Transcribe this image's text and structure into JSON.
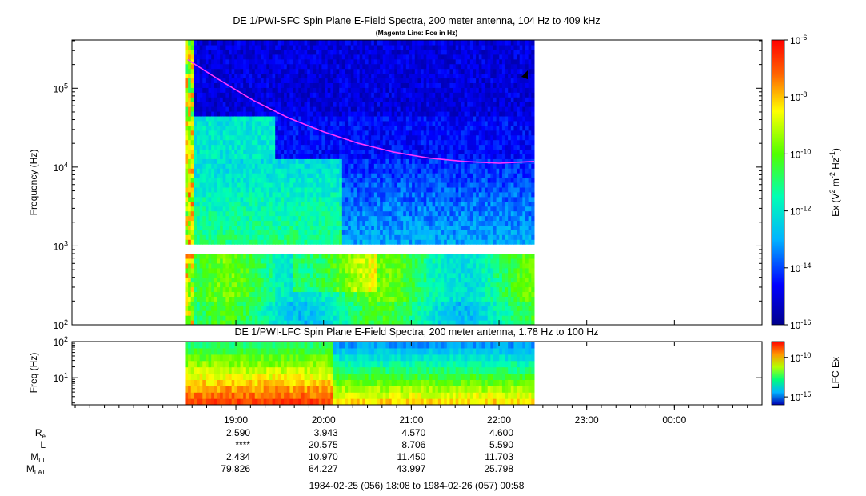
{
  "chart_data": [
    {
      "type": "heatmap",
      "title": "DE 1/PWI-SFC  Spin Plane E-Field Spectra, 200 meter antenna, 104 Hz to 409 kHz",
      "subtitle": "(Magenta Line: Fce in Hz)",
      "ylabel": "Frequency (Hz)",
      "y_scale": "log",
      "ylim": [
        100,
        409000
      ],
      "y_ticks": [
        {
          "v": 100,
          "b": "10",
          "e": "2"
        },
        {
          "v": 1000,
          "b": "10",
          "e": "3"
        },
        {
          "v": 10000,
          "b": "10",
          "e": "4"
        },
        {
          "v": 100000,
          "b": "10",
          "e": "5"
        }
      ],
      "data_extent_hours": [
        18.42,
        22.4
      ],
      "data_gap_hz": [
        900,
        1050
      ],
      "colorbar": {
        "label_parts": [
          "Ex (V",
          "2",
          " m",
          "-2",
          " Hz",
          "-1",
          ")"
        ],
        "scale": "log",
        "range": [
          1e-16,
          1e-06
        ],
        "ticks": [
          {
            "v": -16,
            "b": "10",
            "e": "-16"
          },
          {
            "v": -14,
            "b": "10",
            "e": "-14"
          },
          {
            "v": -12,
            "b": "10",
            "e": "-12"
          },
          {
            "v": -10,
            "b": "10",
            "e": "-10"
          },
          {
            "v": -8,
            "b": "10",
            "e": "-8"
          },
          {
            "v": -6,
            "b": "10",
            "e": "-6"
          }
        ]
      },
      "fce_line": {
        "color": "#ff33ff",
        "t_hours": [
          18.45,
          18.8,
          19.2,
          19.6,
          20.0,
          20.4,
          20.8,
          21.2,
          21.6,
          22.0,
          22.4
        ],
        "freq_hz": [
          230000,
          130000,
          70000,
          42000,
          28000,
          20000,
          15500,
          13000,
          11800,
          11200,
          11800
        ]
      }
    },
    {
      "type": "heatmap",
      "title": "DE 1/PWI-LFC  Spin Plane E-Field Spectra, 200 meter antenna, 1.78 Hz to 100 Hz",
      "ylabel": "Freq (Hz)",
      "y_scale": "log",
      "ylim": [
        1.78,
        100
      ],
      "y_ticks": [
        {
          "v": 10,
          "b": "10",
          "e": "1"
        },
        {
          "v": 100,
          "b": "10",
          "e": "2"
        }
      ],
      "data_extent_hours": [
        18.42,
        22.4
      ],
      "colorbar": {
        "label": "LFC Ex",
        "scale": "log",
        "range": [
          1e-16,
          1e-08
        ],
        "ticks": [
          {
            "v": -15,
            "b": "10",
            "e": "-15"
          },
          {
            "v": -10,
            "b": "10",
            "e": "-10"
          }
        ]
      }
    }
  ],
  "x_axis": {
    "xlim_hours": [
      17.13,
      25.0
    ],
    "major_ticks": [
      {
        "h": 19,
        "label": "19:00"
      },
      {
        "h": 20,
        "label": "20:00"
      },
      {
        "h": 21,
        "label": "21:00"
      },
      {
        "h": 22,
        "label": "22:00"
      },
      {
        "h": 23,
        "label": "23:00"
      },
      {
        "h": 24,
        "label": "00:00"
      }
    ],
    "ephemeris": [
      {
        "name": "R",
        "sub": "e",
        "values": [
          "2.590",
          "3.943",
          "4.570",
          "4.600"
        ]
      },
      {
        "name": "L",
        "sub": "",
        "values": [
          "****",
          "20.575",
          "8.706",
          "5.590"
        ]
      },
      {
        "name": "M",
        "sub": "LT",
        "values": [
          "2.434",
          "10.970",
          "11.450",
          "11.703"
        ]
      },
      {
        "name": "M",
        "sub": "LAT",
        "values": [
          "79.826",
          "64.227",
          "43.997",
          "25.798"
        ]
      }
    ],
    "time_range": "1984-02-25 (056) 18:08 to 1984-02-26 (057) 00:58"
  }
}
